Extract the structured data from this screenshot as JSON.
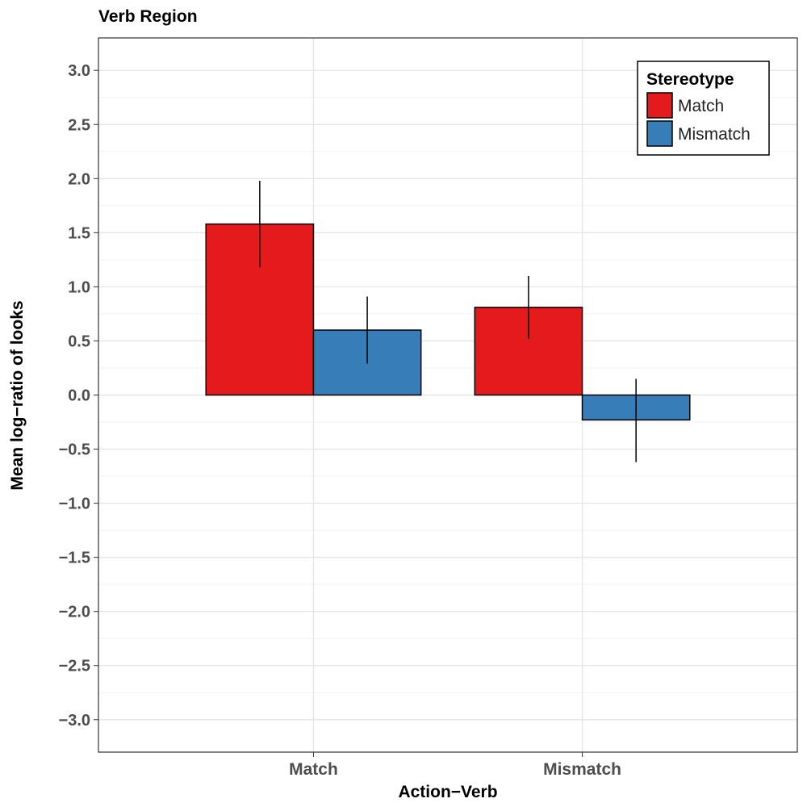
{
  "chart_data": {
    "type": "bar",
    "title": "Verb Region",
    "xlabel": "Action−Verb",
    "ylabel": "Mean log−ratio of looks",
    "categories": [
      "Match",
      "Mismatch"
    ],
    "ylim": [
      -3.3,
      3.3
    ],
    "yticks": [
      3.0,
      2.5,
      2.0,
      1.5,
      1.0,
      0.5,
      0.0,
      -0.5,
      -1.0,
      -1.5,
      -2.0,
      -2.5,
      -3.0
    ],
    "ytick_labels": [
      "3.0",
      "2.5",
      "2.0",
      "1.5",
      "1.0",
      "0.5",
      "0.0",
      "−0.5",
      "−1.0",
      "−1.5",
      "−2.0",
      "−2.5",
      "−3.0"
    ],
    "grid": true,
    "legend": {
      "title": "Stereotype",
      "position": "top-right"
    },
    "series": [
      {
        "name": "Match",
        "color": "#e41a1c",
        "values": [
          1.58,
          0.81
        ],
        "error_low": [
          1.18,
          0.52
        ],
        "error_high": [
          1.98,
          1.1
        ]
      },
      {
        "name": "Mismatch",
        "color": "#377eb8",
        "values": [
          0.6,
          -0.23
        ],
        "error_low": [
          0.29,
          -0.62
        ],
        "error_high": [
          0.91,
          0.15
        ]
      }
    ]
  }
}
